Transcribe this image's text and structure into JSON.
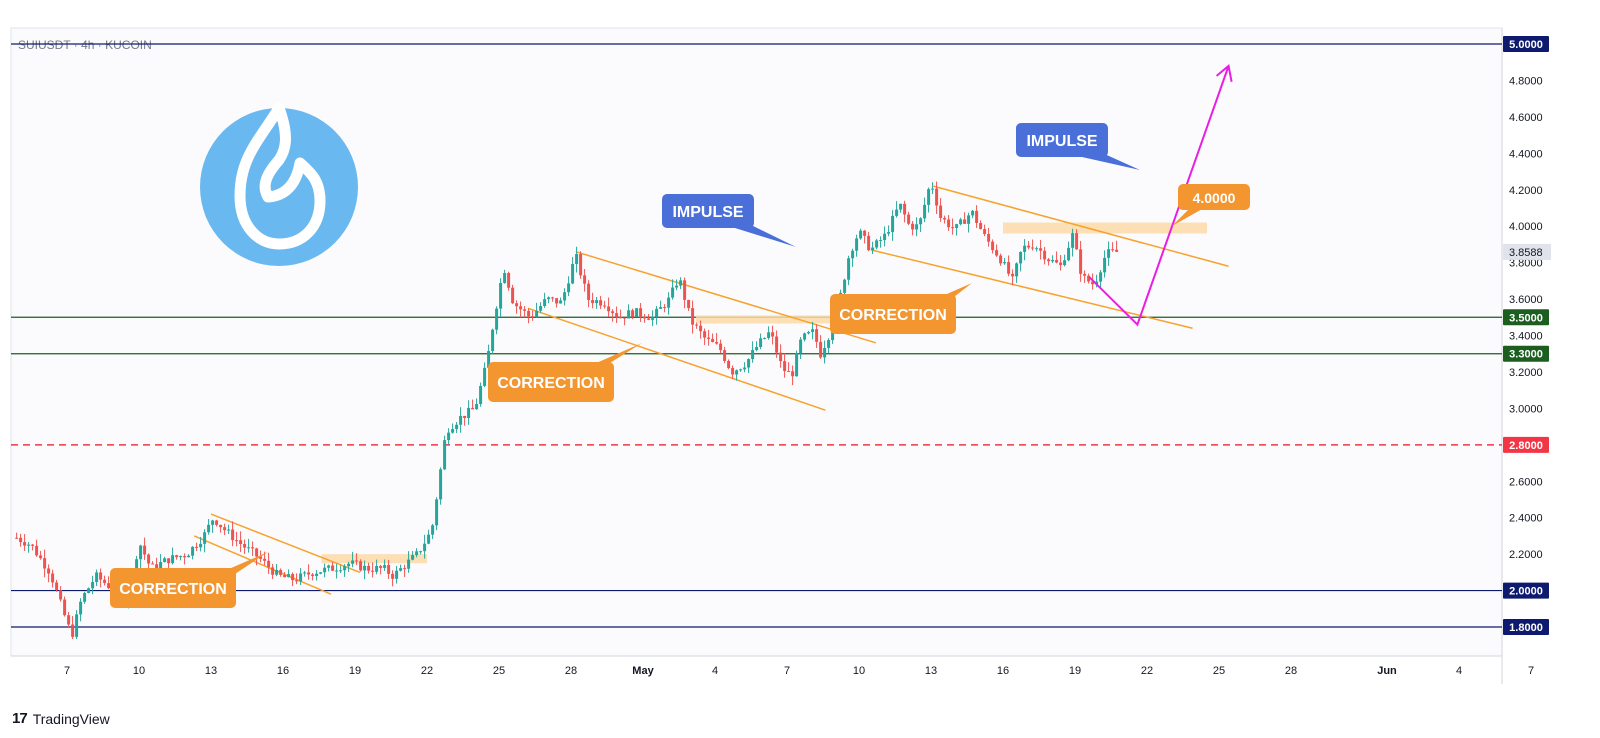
{
  "header": {
    "symbol_label": "SUIUSDT · 4h · KUCOIN"
  },
  "footer": {
    "brand": "TradingView"
  },
  "colors": {
    "candle_up": "#26a69a",
    "candle_down": "#ef5350",
    "channel": "#f7a22c",
    "zone": "#fcd9a8",
    "projection": "#e91ee3",
    "support_green": "#1b5e20",
    "support_navy": "#0d1a6e",
    "resistance_red": "#f23645",
    "impulse_bg": "#4a6fd8",
    "correction_bg": "#f4962f"
  },
  "chart_data": {
    "type": "candlestick",
    "x_axis_labels": [
      "7",
      "10",
      "13",
      "16",
      "19",
      "22",
      "25",
      "28",
      "May",
      "4",
      "7",
      "10",
      "13",
      "16",
      "19",
      "22",
      "25",
      "28",
      "Jun",
      "4",
      "7"
    ],
    "x_axis_label_days": [
      7,
      10,
      13,
      16,
      19,
      22,
      25,
      28,
      31,
      34,
      37,
      40,
      43,
      46,
      49,
      52,
      55,
      58,
      62,
      65,
      68
    ],
    "y_ticks": [
      "2.2000",
      "2.4000",
      "2.6000",
      "3.0000",
      "3.2000",
      "3.4000",
      "3.6000",
      "3.8000",
      "4.0000",
      "4.2000",
      "4.4000",
      "4.6000",
      "4.8000"
    ],
    "y_range": [
      1.58,
      5.06
    ],
    "grid": false,
    "current_price": "3.8588",
    "horizontal_levels": [
      {
        "label": "5.0000",
        "value": 5.0,
        "style": "solid",
        "color": "navy"
      },
      {
        "label": "3.5000",
        "value": 3.5,
        "style": "solid",
        "color": "green"
      },
      {
        "label": "3.3000",
        "value": 3.3,
        "style": "solid",
        "color": "green"
      },
      {
        "label": "2.8000",
        "value": 2.8,
        "style": "dashed",
        "color": "red"
      },
      {
        "label": "2.0000",
        "value": 2.0,
        "style": "solid",
        "color": "navy"
      },
      {
        "label": "1.8000",
        "value": 1.8,
        "style": "solid",
        "color": "navy"
      }
    ],
    "price_path": [
      [
        4.9,
        2.29
      ],
      [
        5.5,
        2.25
      ],
      [
        6.3,
        2.1
      ],
      [
        6.8,
        1.9
      ],
      [
        7.2,
        1.75
      ],
      [
        7.6,
        1.95
      ],
      [
        8.2,
        2.08
      ],
      [
        8.8,
        2.02
      ],
      [
        9.3,
        1.93
      ],
      [
        9.7,
        2.05
      ],
      [
        10.0,
        2.27
      ],
      [
        10.5,
        2.12
      ],
      [
        11.2,
        2.17
      ],
      [
        12.0,
        2.2
      ],
      [
        12.7,
        2.3
      ],
      [
        13.1,
        2.4
      ],
      [
        13.6,
        2.33
      ],
      [
        14.3,
        2.25
      ],
      [
        15.0,
        2.18
      ],
      [
        15.8,
        2.08
      ],
      [
        16.5,
        2.06
      ],
      [
        17.2,
        2.1
      ],
      [
        18.0,
        2.12
      ],
      [
        18.8,
        2.15
      ],
      [
        19.5,
        2.12
      ],
      [
        20.2,
        2.12
      ],
      [
        20.6,
        2.08
      ],
      [
        21.0,
        2.13
      ],
      [
        21.6,
        2.2
      ],
      [
        22.2,
        2.33
      ],
      [
        22.5,
        2.6
      ],
      [
        22.8,
        2.88
      ],
      [
        23.4,
        2.95
      ],
      [
        24.0,
        3.0
      ],
      [
        24.5,
        3.25
      ],
      [
        24.8,
        3.5
      ],
      [
        25.2,
        3.78
      ],
      [
        25.6,
        3.58
      ],
      [
        26.3,
        3.5
      ],
      [
        27.0,
        3.6
      ],
      [
        27.6,
        3.58
      ],
      [
        28.2,
        3.84
      ],
      [
        28.7,
        3.6
      ],
      [
        29.4,
        3.58
      ],
      [
        30.0,
        3.5
      ],
      [
        30.6,
        3.53
      ],
      [
        31.4,
        3.5
      ],
      [
        32.1,
        3.6
      ],
      [
        32.5,
        3.72
      ],
      [
        33.0,
        3.48
      ],
      [
        33.6,
        3.38
      ],
      [
        34.2,
        3.33
      ],
      [
        34.7,
        3.2
      ],
      [
        35.3,
        3.25
      ],
      [
        35.8,
        3.35
      ],
      [
        36.3,
        3.42
      ],
      [
        36.8,
        3.22
      ],
      [
        37.2,
        3.18
      ],
      [
        37.6,
        3.38
      ],
      [
        38.1,
        3.42
      ],
      [
        38.4,
        3.3
      ],
      [
        38.8,
        3.42
      ],
      [
        39.2,
        3.6
      ],
      [
        39.6,
        3.85
      ],
      [
        40.0,
        3.97
      ],
      [
        40.5,
        3.87
      ],
      [
        41.1,
        3.95
      ],
      [
        41.7,
        4.12
      ],
      [
        42.1,
        4.0
      ],
      [
        42.5,
        4.0
      ],
      [
        43.0,
        4.25
      ],
      [
        43.4,
        4.05
      ],
      [
        44.0,
        3.98
      ],
      [
        44.7,
        4.08
      ],
      [
        45.2,
        3.95
      ],
      [
        45.9,
        3.82
      ],
      [
        46.4,
        3.7
      ],
      [
        46.8,
        3.88
      ],
      [
        47.3,
        3.9
      ],
      [
        47.9,
        3.82
      ],
      [
        48.4,
        3.78
      ],
      [
        48.9,
        3.95
      ],
      [
        49.3,
        3.72
      ],
      [
        49.8,
        3.68
      ],
      [
        50.3,
        3.85
      ],
      [
        50.8,
        3.86
      ]
    ],
    "channels": [
      {
        "upper": [
          [
            13,
            2.42
          ],
          [
            19.2,
            2.1
          ]
        ],
        "lower": [
          [
            12.3,
            2.3
          ],
          [
            18.0,
            1.98
          ]
        ]
      },
      {
        "upper": [
          [
            28.2,
            3.86
          ],
          [
            40.7,
            3.36
          ]
        ],
        "lower": [
          [
            26.2,
            3.55
          ],
          [
            38.6,
            2.99
          ]
        ]
      },
      {
        "upper": [
          [
            43.1,
            4.22
          ],
          [
            55.4,
            3.78
          ]
        ],
        "lower": [
          [
            40.5,
            3.87
          ],
          [
            53.9,
            3.44
          ]
        ]
      }
    ],
    "resistance_zones": [
      {
        "from": 17.6,
        "to": 22.0,
        "low": 2.15,
        "high": 2.2
      },
      {
        "from": 33.2,
        "to": 39.0,
        "low": 3.47,
        "high": 3.51
      },
      {
        "from": 46.0,
        "to": 54.5,
        "low": 3.96,
        "high": 4.02
      }
    ],
    "projection": [
      [
        49.6,
        3.72
      ],
      [
        51.6,
        3.46
      ],
      [
        55.4,
        4.88
      ]
    ],
    "annotations": [
      {
        "text": "IMPULSE",
        "kind": "impulse"
      },
      {
        "text": "IMPULSE",
        "kind": "impulse"
      },
      {
        "text": "CORRECTION",
        "kind": "correction"
      },
      {
        "text": "CORRECTION",
        "kind": "correction"
      },
      {
        "text": "CORRECTION",
        "kind": "correction"
      },
      {
        "text": "4.0000",
        "kind": "target"
      }
    ]
  }
}
